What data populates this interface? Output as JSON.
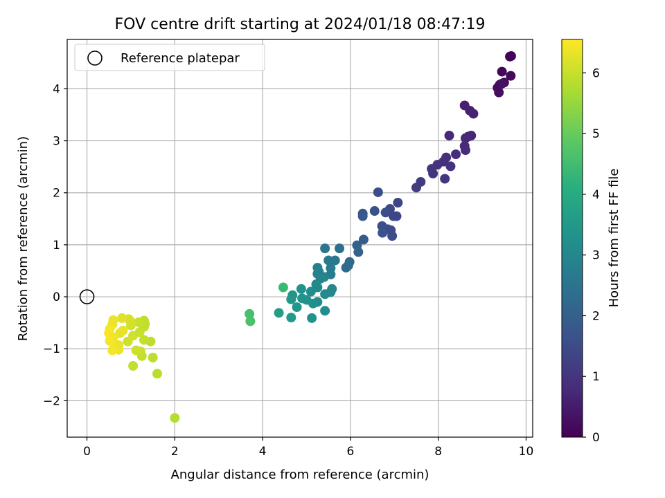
{
  "chart_data": {
    "type": "scatter",
    "title": "FOV centre drift starting at 2024/01/18 08:47:19",
    "xlabel": "Angular distance from reference (arcmin)",
    "ylabel": "Rotation from reference (arcmin)",
    "xlim": [
      -0.45,
      10.15
    ],
    "ylim": [
      -2.7,
      4.95
    ],
    "xticks": [
      0,
      2,
      4,
      6,
      8,
      10
    ],
    "xtick_labels": [
      "0",
      "2",
      "4",
      "6",
      "8",
      "10"
    ],
    "yticks": [
      -2,
      -1,
      0,
      1,
      2,
      3,
      4
    ],
    "ytick_labels": [
      "−2",
      "−1",
      "0",
      "1",
      "2",
      "3",
      "4"
    ],
    "grid": true,
    "legend": {
      "position": "top-left",
      "entries": [
        "Reference platepar"
      ]
    },
    "reference_point": {
      "x": 0,
      "y": 0,
      "label": "Reference platepar"
    },
    "colorbar": {
      "label": "Hours from first FF file",
      "range": [
        0,
        6.55
      ],
      "ticks": [
        0,
        1,
        2,
        3,
        4,
        5,
        6
      ],
      "tick_labels": [
        "0",
        "1",
        "2",
        "3",
        "4",
        "5",
        "6"
      ],
      "colormap": "viridis"
    },
    "points": [
      {
        "x": 9.63,
        "y": 4.62,
        "c": 0.05
      },
      {
        "x": 9.66,
        "y": 4.63,
        "c": 0.08
      },
      {
        "x": 9.45,
        "y": 4.33,
        "c": 0.12
      },
      {
        "x": 9.65,
        "y": 4.25,
        "c": 0.15
      },
      {
        "x": 9.5,
        "y": 4.12,
        "c": 0.18
      },
      {
        "x": 9.4,
        "y": 4.08,
        "c": 0.2
      },
      {
        "x": 9.35,
        "y": 4.02,
        "c": 0.22
      },
      {
        "x": 9.38,
        "y": 3.93,
        "c": 0.25
      },
      {
        "x": 9.45,
        "y": 4.1,
        "c": 0.28
      },
      {
        "x": 8.6,
        "y": 3.68,
        "c": 0.55
      },
      {
        "x": 8.72,
        "y": 3.58,
        "c": 0.6
      },
      {
        "x": 8.8,
        "y": 3.52,
        "c": 0.62
      },
      {
        "x": 8.25,
        "y": 3.1,
        "c": 0.75
      },
      {
        "x": 8.75,
        "y": 3.1,
        "c": 0.7
      },
      {
        "x": 8.68,
        "y": 3.08,
        "c": 0.72
      },
      {
        "x": 8.62,
        "y": 3.05,
        "c": 0.74
      },
      {
        "x": 8.6,
        "y": 2.9,
        "c": 0.78
      },
      {
        "x": 8.62,
        "y": 2.82,
        "c": 0.8
      },
      {
        "x": 8.4,
        "y": 2.74,
        "c": 0.82
      },
      {
        "x": 8.18,
        "y": 2.68,
        "c": 0.88
      },
      {
        "x": 8.12,
        "y": 2.6,
        "c": 0.9
      },
      {
        "x": 8.28,
        "y": 2.51,
        "c": 0.92
      },
      {
        "x": 7.98,
        "y": 2.54,
        "c": 0.95
      },
      {
        "x": 7.85,
        "y": 2.46,
        "c": 0.98
      },
      {
        "x": 7.88,
        "y": 2.37,
        "c": 1.0
      },
      {
        "x": 8.15,
        "y": 2.27,
        "c": 1.02
      },
      {
        "x": 7.6,
        "y": 2.21,
        "c": 1.1
      },
      {
        "x": 7.5,
        "y": 2.1,
        "c": 1.15
      },
      {
        "x": 6.63,
        "y": 2.01,
        "c": 1.55
      },
      {
        "x": 7.08,
        "y": 1.81,
        "c": 1.35
      },
      {
        "x": 6.9,
        "y": 1.69,
        "c": 1.45
      },
      {
        "x": 6.55,
        "y": 1.65,
        "c": 1.62
      },
      {
        "x": 6.8,
        "y": 1.62,
        "c": 1.55
      },
      {
        "x": 6.28,
        "y": 1.6,
        "c": 1.8
      },
      {
        "x": 6.28,
        "y": 1.55,
        "c": 1.82
      },
      {
        "x": 6.98,
        "y": 1.55,
        "c": 1.4
      },
      {
        "x": 7.05,
        "y": 1.55,
        "c": 1.38
      },
      {
        "x": 6.72,
        "y": 1.36,
        "c": 1.58
      },
      {
        "x": 6.85,
        "y": 1.3,
        "c": 1.6
      },
      {
        "x": 6.92,
        "y": 1.28,
        "c": 1.55
      },
      {
        "x": 6.73,
        "y": 1.23,
        "c": 1.65
      },
      {
        "x": 6.95,
        "y": 1.17,
        "c": 1.52
      },
      {
        "x": 6.3,
        "y": 1.1,
        "c": 1.9
      },
      {
        "x": 6.15,
        "y": 0.99,
        "c": 2.0
      },
      {
        "x": 6.18,
        "y": 0.86,
        "c": 2.05
      },
      {
        "x": 5.98,
        "y": 0.67,
        "c": 2.2
      },
      {
        "x": 5.95,
        "y": 0.6,
        "c": 2.25
      },
      {
        "x": 5.9,
        "y": 0.56,
        "c": 2.28
      },
      {
        "x": 5.42,
        "y": 0.93,
        "c": 2.6
      },
      {
        "x": 5.75,
        "y": 0.93,
        "c": 2.4
      },
      {
        "x": 5.5,
        "y": 0.7,
        "c": 2.65
      },
      {
        "x": 5.65,
        "y": 0.7,
        "c": 2.58
      },
      {
        "x": 5.25,
        "y": 0.56,
        "c": 2.8
      },
      {
        "x": 5.55,
        "y": 0.55,
        "c": 2.7
      },
      {
        "x": 5.28,
        "y": 0.48,
        "c": 2.85
      },
      {
        "x": 5.25,
        "y": 0.44,
        "c": 2.88
      },
      {
        "x": 5.55,
        "y": 0.43,
        "c": 2.75
      },
      {
        "x": 5.4,
        "y": 0.38,
        "c": 2.9
      },
      {
        "x": 5.32,
        "y": 0.35,
        "c": 2.95
      },
      {
        "x": 5.22,
        "y": 0.24,
        "c": 3.05
      },
      {
        "x": 5.25,
        "y": 0.18,
        "c": 3.1
      },
      {
        "x": 5.58,
        "y": 0.15,
        "c": 3.0
      },
      {
        "x": 5.55,
        "y": 0.09,
        "c": 3.05
      },
      {
        "x": 5.1,
        "y": 0.1,
        "c": 3.15
      },
      {
        "x": 5.42,
        "y": 0.05,
        "c": 3.12
      },
      {
        "x": 4.88,
        "y": 0.15,
        "c": 3.3
      },
      {
        "x": 4.68,
        "y": 0.03,
        "c": 3.4
      },
      {
        "x": 4.9,
        "y": -0.03,
        "c": 3.35
      },
      {
        "x": 5.0,
        "y": -0.06,
        "c": 3.3
      },
      {
        "x": 4.65,
        "y": -0.05,
        "c": 3.45
      },
      {
        "x": 5.25,
        "y": -0.1,
        "c": 3.2
      },
      {
        "x": 5.15,
        "y": -0.13,
        "c": 3.25
      },
      {
        "x": 4.78,
        "y": -0.2,
        "c": 3.42
      },
      {
        "x": 5.42,
        "y": -0.27,
        "c": 3.18
      },
      {
        "x": 4.37,
        "y": -0.31,
        "c": 3.6
      },
      {
        "x": 4.65,
        "y": -0.4,
        "c": 3.5
      },
      {
        "x": 5.12,
        "y": -0.41,
        "c": 3.3
      },
      {
        "x": 4.47,
        "y": 0.18,
        "c": 4.4
      },
      {
        "x": 3.7,
        "y": -0.33,
        "c": 4.6
      },
      {
        "x": 3.72,
        "y": -0.47,
        "c": 4.65
      },
      {
        "x": 2.0,
        "y": -2.33,
        "c": 5.8
      },
      {
        "x": 1.6,
        "y": -1.48,
        "c": 5.85
      },
      {
        "x": 1.05,
        "y": -1.33,
        "c": 5.95
      },
      {
        "x": 1.5,
        "y": -1.17,
        "c": 5.88
      },
      {
        "x": 1.25,
        "y": -1.14,
        "c": 5.98
      },
      {
        "x": 1.22,
        "y": -1.05,
        "c": 6.0
      },
      {
        "x": 1.12,
        "y": -1.03,
        "c": 6.05
      },
      {
        "x": 1.45,
        "y": -0.86,
        "c": 5.9
      },
      {
        "x": 1.3,
        "y": -0.83,
        "c": 5.95
      },
      {
        "x": 0.93,
        "y": -0.86,
        "c": 6.05
      },
      {
        "x": 1.05,
        "y": -0.75,
        "c": 6.08
      },
      {
        "x": 1.2,
        "y": -0.68,
        "c": 6.02
      },
      {
        "x": 1.3,
        "y": -0.58,
        "c": 5.95
      },
      {
        "x": 1.32,
        "y": -0.52,
        "c": 5.93
      },
      {
        "x": 1.3,
        "y": -0.46,
        "c": 5.92
      },
      {
        "x": 1.18,
        "y": -0.49,
        "c": 6.0
      },
      {
        "x": 1.0,
        "y": -0.48,
        "c": 6.1
      },
      {
        "x": 1.0,
        "y": -0.55,
        "c": 6.12
      },
      {
        "x": 0.95,
        "y": -0.43,
        "c": 6.15
      },
      {
        "x": 0.8,
        "y": -0.41,
        "c": 6.25
      },
      {
        "x": 0.6,
        "y": -0.45,
        "c": 6.35
      },
      {
        "x": 0.58,
        "y": -0.53,
        "c": 6.38
      },
      {
        "x": 0.82,
        "y": -0.65,
        "c": 6.3
      },
      {
        "x": 0.75,
        "y": -0.7,
        "c": 6.3
      },
      {
        "x": 0.52,
        "y": -0.62,
        "c": 6.45
      },
      {
        "x": 0.5,
        "y": -0.7,
        "c": 6.5
      },
      {
        "x": 0.6,
        "y": -0.78,
        "c": 6.42
      },
      {
        "x": 0.52,
        "y": -0.85,
        "c": 6.48
      },
      {
        "x": 0.72,
        "y": -0.93,
        "c": 6.35
      },
      {
        "x": 0.65,
        "y": -0.98,
        "c": 6.4
      },
      {
        "x": 0.72,
        "y": -1.02,
        "c": 6.38
      },
      {
        "x": 0.58,
        "y": -1.03,
        "c": 6.45
      }
    ]
  }
}
